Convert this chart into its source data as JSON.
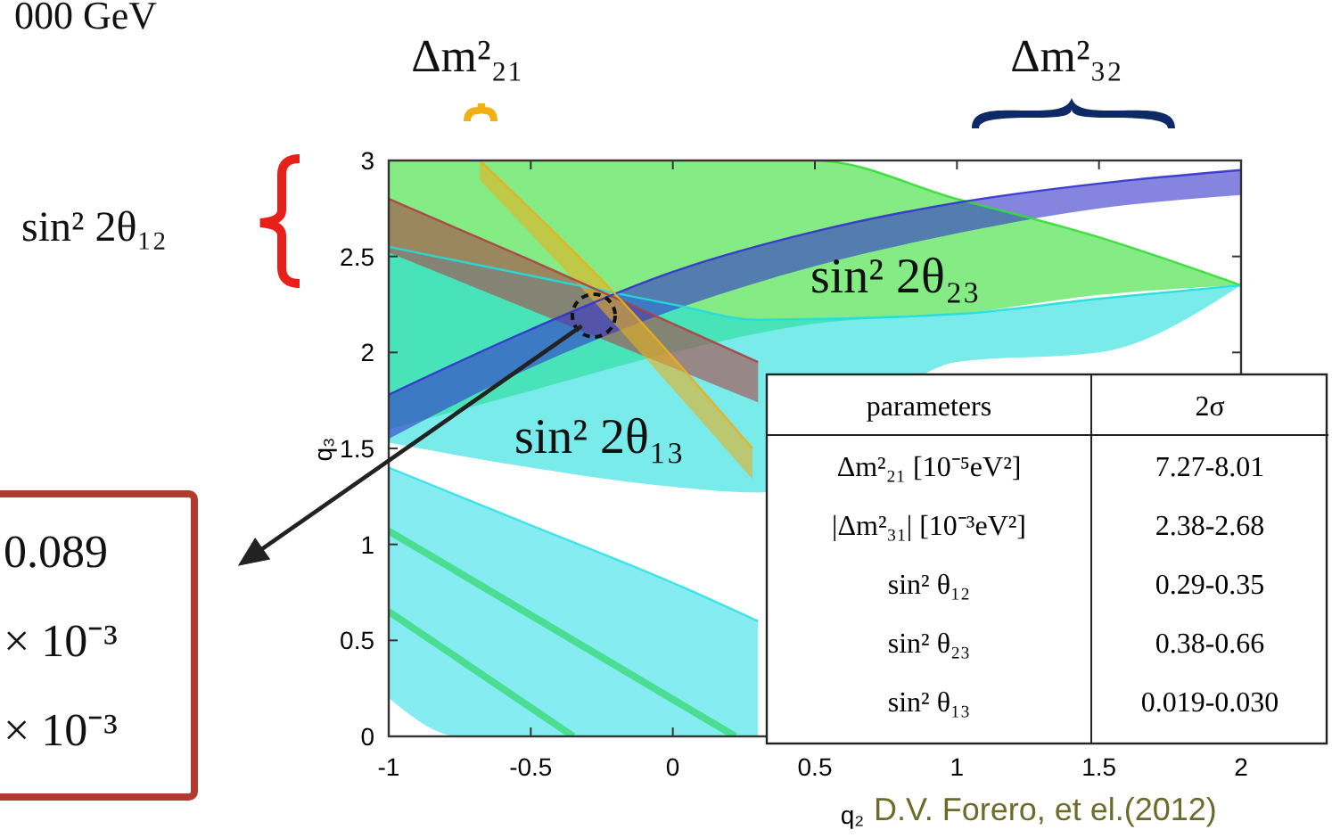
{
  "chart_data": [
    {
      "type": "line",
      "xlabel": "q₂",
      "ylabel": "q₃",
      "xlim": [
        -1,
        2
      ],
      "ylim": [
        0,
        3
      ],
      "xticks": [
        -1,
        -0.5,
        0,
        0.5,
        1,
        1.5,
        2
      ],
      "yticks": [
        0,
        0.5,
        1,
        1.5,
        2,
        2.5,
        3
      ],
      "grid": false,
      "series": [
        {
          "color": "#33dd33",
          "x": [
            -1,
            -0.5,
            0,
            0.5,
            1,
            1.5,
            2
          ],
          "values": [
            3,
            3,
            3,
            3,
            2.8,
            2.6,
            2.35
          ],
          "lower": [
            1.6,
            1.8,
            2.0,
            2.15,
            2.2,
            2.3,
            2.35
          ],
          "upper": [
            3,
            3,
            3,
            3,
            2.8,
            2.6,
            2.35
          ]
        },
        {
          "color": "#22dddd",
          "x": [
            -1,
            -0.5,
            0,
            0.3,
            1,
            1.5,
            2
          ],
          "values": [
            2.55,
            2.4,
            2.25,
            2.17,
            2.2,
            2.28,
            2.35
          ],
          "lower": [
            1.53,
            1.4,
            1.3,
            1.27,
            1.95,
            2.0,
            2.35
          ],
          "upper": [
            2.55,
            2.4,
            2.25,
            2.17,
            2.2,
            2.28,
            2.35
          ]
        },
        {
          "color": "#33e0e8",
          "x": [
            -1,
            -0.75,
            -0.5,
            0,
            0.3
          ],
          "values": [
            1.4,
            1.25,
            1.1,
            0.8,
            0.6
          ],
          "lower": [
            0.2,
            0,
            0,
            0,
            0
          ],
          "upper": [
            1.4,
            1.25,
            1.1,
            0.8,
            0.6
          ]
        },
        {
          "color": "#aa4444",
          "x": [
            -1,
            -0.5,
            0,
            0.3
          ],
          "values": [
            2.8,
            2.48,
            2.15,
            1.95
          ],
          "lower": [
            2.52,
            2.22,
            1.92,
            1.74
          ],
          "upper": [
            2.8,
            2.48,
            2.15,
            1.95
          ]
        },
        {
          "color": "#3333cc",
          "x": [
            -1,
            -0.5,
            0,
            0.5,
            1,
            1.5,
            2
          ],
          "values": [
            1.78,
            2.12,
            2.42,
            2.63,
            2.78,
            2.88,
            2.95
          ],
          "lower": [
            1.55,
            1.92,
            2.22,
            2.45,
            2.62,
            2.75,
            2.82
          ],
          "upper": [
            1.78,
            2.12,
            2.42,
            2.63,
            2.78,
            2.88,
            2.95
          ]
        },
        {
          "color": "#e8b020",
          "x": [
            -0.68,
            -0.2,
            0.28
          ],
          "values": [
            3.0,
            2.3,
            1.5
          ],
          "lower": [
            2.9,
            2.14,
            1.34
          ],
          "upper": [
            3.0,
            2.3,
            1.5
          ]
        },
        {
          "color": "#44dd88",
          "x": [
            -1,
            0.22
          ],
          "values": [
            1.07,
            0
          ]
        },
        {
          "color": "#44dd88",
          "x": [
            -1,
            -0.35
          ],
          "values": [
            0.65,
            0
          ]
        }
      ],
      "annotations": [
        "Δm²₂₁",
        "Δm²₃₂",
        "sin² 2θ₁₂",
        "sin² 2θ₂₃",
        "sin² 2θ₁₃",
        "D.V. Forero, et el.(2012)",
        "000 GeV",
        "0.089",
        "× 10⁻³",
        "× 10⁻³"
      ]
    },
    {
      "type": "other",
      "annotations": [
        "parameters",
        "2σ",
        "Δm²₂₁ [10⁻⁵eV²]",
        "7.27-8.01",
        "|Δm²₃₁| [10⁻³eV²]",
        "2.38-2.68",
        "sin² θ₁₂",
        "0.29-0.35",
        "sin² θ₂₃",
        "0.38-0.66",
        "sin² θ₁₃",
        "0.019-0.030"
      ]
    }
  ]
}
